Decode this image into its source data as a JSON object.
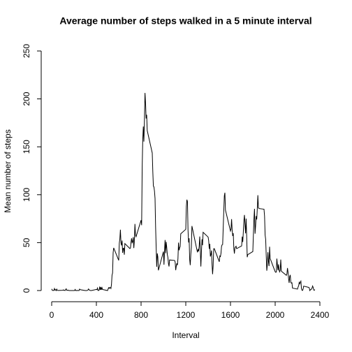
{
  "chart_data": {
    "type": "line",
    "title": "Average number of steps walked in a 5 minute interval",
    "x_label": "Interval",
    "y_label": "Mean number of steps",
    "color": "#000000",
    "xlim": [
      0,
      2400
    ],
    "xticks": [
      0,
      400,
      800,
      1200,
      1600,
      2000,
      2400
    ],
    "ylim": [
      0,
      250
    ],
    "yticks": [
      0,
      50,
      100,
      150,
      200,
      250
    ],
    "x": [
      0,
      5,
      10,
      15,
      20,
      25,
      30,
      35,
      40,
      45,
      50,
      55,
      100,
      105,
      110,
      115,
      120,
      125,
      130,
      135,
      140,
      145,
      150,
      155,
      200,
      205,
      210,
      215,
      220,
      225,
      230,
      235,
      240,
      245,
      250,
      255,
      300,
      305,
      310,
      315,
      320,
      325,
      330,
      335,
      340,
      345,
      350,
      355,
      400,
      405,
      410,
      415,
      420,
      425,
      430,
      435,
      440,
      445,
      450,
      455,
      500,
      505,
      510,
      515,
      520,
      525,
      530,
      535,
      540,
      545,
      550,
      555,
      600,
      605,
      610,
      615,
      620,
      625,
      630,
      635,
      640,
      645,
      650,
      655,
      700,
      705,
      710,
      715,
      720,
      725,
      730,
      735,
      740,
      745,
      750,
      755,
      800,
      805,
      810,
      815,
      820,
      825,
      830,
      835,
      840,
      845,
      850,
      855,
      900,
      905,
      910,
      915,
      920,
      925,
      930,
      935,
      940,
      945,
      950,
      955,
      1000,
      1005,
      1010,
      1015,
      1020,
      1025,
      1030,
      1035,
      1040,
      1045,
      1050,
      1055,
      1100,
      1105,
      1110,
      1115,
      1120,
      1125,
      1130,
      1135,
      1140,
      1145,
      1150,
      1155,
      1200,
      1205,
      1210,
      1215,
      1220,
      1225,
      1230,
      1235,
      1240,
      1245,
      1250,
      1255,
      1300,
      1305,
      1310,
      1315,
      1320,
      1325,
      1330,
      1335,
      1340,
      1345,
      1350,
      1355,
      1400,
      1405,
      1410,
      1415,
      1420,
      1425,
      1430,
      1435,
      1440,
      1445,
      1450,
      1455,
      1500,
      1505,
      1510,
      1515,
      1520,
      1525,
      1530,
      1535,
      1540,
      1545,
      1550,
      1555,
      1600,
      1605,
      1610,
      1615,
      1620,
      1625,
      1630,
      1635,
      1640,
      1645,
      1650,
      1655,
      1700,
      1705,
      1710,
      1715,
      1720,
      1725,
      1730,
      1735,
      1740,
      1745,
      1750,
      1755,
      1800,
      1805,
      1810,
      1815,
      1820,
      1825,
      1830,
      1835,
      1840,
      1845,
      1850,
      1855,
      1900,
      1905,
      1910,
      1915,
      1920,
      1925,
      1930,
      1935,
      1940,
      1945,
      1950,
      1955,
      2000,
      2005,
      2010,
      2015,
      2020,
      2025,
      2030,
      2035,
      2040,
      2045,
      2050,
      2055,
      2100,
      2105,
      2110,
      2115,
      2120,
      2125,
      2130,
      2135,
      2140,
      2145,
      2150,
      2155,
      2200,
      2205,
      2210,
      2215,
      2220,
      2225,
      2230,
      2235,
      2240,
      2245,
      2250,
      2255,
      2300,
      2305,
      2310,
      2315,
      2320,
      2325,
      2330,
      2335,
      2340,
      2345,
      2350,
      2355
    ],
    "values": [
      1.7,
      0.3,
      0.1,
      0.2,
      0.1,
      2.1,
      0.5,
      0.9,
      0,
      1.5,
      0.3,
      0.1,
      0.3,
      0.7,
      0.2,
      0.3,
      0,
      1.1,
      1.8,
      0.2,
      0.2,
      0.4,
      0.3,
      0,
      0,
      0,
      1.1,
      0,
      0,
      0.1,
      0,
      0.2,
      0,
      0,
      1.5,
      0.9,
      0,
      0,
      0,
      0,
      0.2,
      0.6,
      1.6,
      0.6,
      0.5,
      0.1,
      0,
      0,
      1.2,
      0.9,
      2.6,
      0,
      0.3,
      0.4,
      4.1,
      0.7,
      3.5,
      0.8,
      3.1,
      1.1,
      0,
      1.6,
      3,
      2.2,
      3.3,
      3,
      2.1,
      6.1,
      16,
      18.3,
      39.5,
      44.5,
      31.5,
      49.3,
      53.8,
      63.5,
      50,
      47.1,
      52.2,
      39.3,
      44,
      44.2,
      37.4,
      49,
      43.8,
      44.4,
      50.5,
      54.5,
      49.9,
      51,
      55.7,
      44.3,
      52.3,
      69.5,
      57.8,
      56.2,
      73.4,
      68.2,
      129.4,
      157.5,
      171.2,
      155.4,
      177.3,
      206.2,
      195.9,
      179.6,
      183.4,
      167,
      143.5,
      124,
      109.1,
      108.1,
      103.7,
      96,
      66.2,
      45.2,
      24.8,
      38.8,
      35,
      21.1,
      40.6,
      27,
      42.4,
      52.7,
      38.9,
      50.8,
      44.3,
      37.4,
      34.7,
      28.3,
      25.1,
      31.9,
      31.4,
      29.7,
      21.3,
      25.5,
      28.4,
      26.5,
      33.4,
      50,
      42,
      44.6,
      46,
      59.2,
      63.9,
      87.7,
      94.8,
      92.8,
      63.4,
      50.2,
      54.5,
      32.4,
      26.5,
      37.7,
      45.1,
      67.3,
      42.3,
      39.9,
      43.3,
      41,
      46.2,
      56.4,
      42.8,
      25.1,
      40,
      53.5,
      47.3,
      60.8,
      55.8,
      52,
      43.6,
      48.7,
      35.5,
      37.5,
      41.8,
      27.5,
      17.1,
      26.1,
      43.6,
      43.8,
      30,
      36.1,
      35.5,
      38.8,
      46,
      47.8,
      48.1,
      65.3,
      82.9,
      98.7,
      102.1,
      84,
      62.1,
      64.1,
      74.5,
      63.2,
      56.9,
      59.8,
      43.9,
      38.6,
      44.7,
      45.5,
      46.2,
      43.7,
      46.6,
      56.3,
      50.7,
      61.2,
      72.7,
      78.9,
      68.9,
      59.7,
      75.1,
      56.5,
      34.8,
      37.5,
      40.7,
      58,
      74.7,
      85.3,
      59.3,
      67.8,
      77.7,
      74.2,
      85.3,
      99.5,
      86.6,
      85.6,
      84.9,
      77.8,
      58,
      53.4,
      36.3,
      20.7,
      27.4,
      40,
      30.2,
      25.5,
      45.7,
      33.5,
      19.6,
      19,
      19.3,
      33.3,
      26.8,
      21.2,
      27.3,
      21.3,
      19.5,
      21.3,
      32.3,
      20.2,
      15.9,
      17.2,
      23.5,
      19.2,
      12.5,
      8,
      14.7,
      16.3,
      8.7,
      7.8,
      8.1,
      2.6,
      1.5,
      3.7,
      4.8,
      8.5,
      7.1,
      8.7,
      9.8,
      2.2,
      0.3,
      0.1,
      1.6,
      4.6,
      3.3,
      2.8,
      0,
      0.8,
      1,
      1.6,
      2.6,
      4.7,
      3.3,
      0.6,
      0.2,
      1.1
    ]
  }
}
